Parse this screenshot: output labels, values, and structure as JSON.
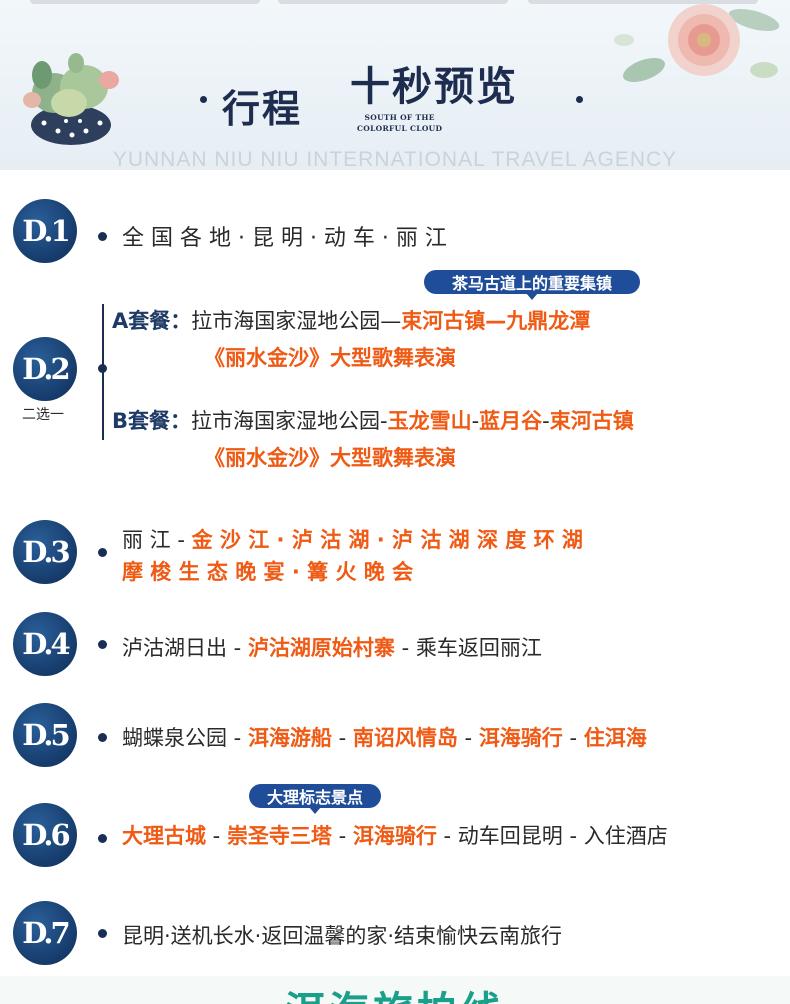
{
  "header": {
    "title_left": "行程",
    "title_right": "十秒预览",
    "subtitle_line1": "SOUTH OF THE",
    "subtitle_line2": "COLORFUL CLOUD",
    "agency": "YUNNAN NIU NIU INTERNATIONAL TRAVEL AGENCY"
  },
  "days": [
    {
      "badge": "D.1",
      "text": "全 国 各 地 · 昆 明 · 动 车 · 丽 江"
    },
    {
      "badge": "D.2",
      "note": "二选一",
      "tag": "茶马古道上的重要集镇",
      "optA": {
        "label": "A套餐：",
        "plain": "拉市海国家湿地公园—",
        "hl1": "束河古镇",
        "sep": "—",
        "hl2": "九鼎龙潭",
        "line2": "《丽水金沙》大型歌舞表演"
      },
      "optB": {
        "label": "B套餐：",
        "plain": "拉市海国家湿地公园-",
        "hl1": "玉龙雪山",
        "sep1": "-",
        "hl2": "蓝月谷",
        "sep2": "-",
        "hl3": "束河古镇",
        "line2": "《丽水金沙》大型歌舞表演"
      }
    },
    {
      "badge": "D.3",
      "plain": "丽 江  -  ",
      "hl": "金 沙 江 · 泸 沽 湖 · 泸 沽 湖 深 度 环 湖",
      "line2": "摩 梭 生 态 晚 宴 · 篝 火 晚 会"
    },
    {
      "badge": "D.4",
      "p1": "泸沽湖日出 - ",
      "hl": "泸沽湖原始村寨",
      "p2": " - 乘车返回丽江"
    },
    {
      "badge": "D.5",
      "p1": "蝴蝶泉公园 - ",
      "hl1": "洱海游船",
      "s1": " - ",
      "hl2": "南诏风情岛",
      "s2": " - ",
      "hl3": "洱海骑行",
      "s3": " - ",
      "hl4": "住洱海"
    },
    {
      "badge": "D.6",
      "tag": "大理标志景点",
      "hl1": "大理古城",
      "s1": " -  ",
      "hl2": "崇圣寺三塔",
      "s2": " - ",
      "hl3": "洱海骑行",
      "p": " - 动车回昆明 - 入住酒店"
    },
    {
      "badge": "D.7",
      "text": "昆明·送机长水·返回温馨的家·结束愉快云南旅行"
    }
  ],
  "footer": {
    "title": "洱海旅拍线"
  },
  "colors": {
    "navy": "#1a2d52",
    "orange": "#ef5a15",
    "teal": "#1a9f8a",
    "tag_blue": "#1f4d9a"
  }
}
